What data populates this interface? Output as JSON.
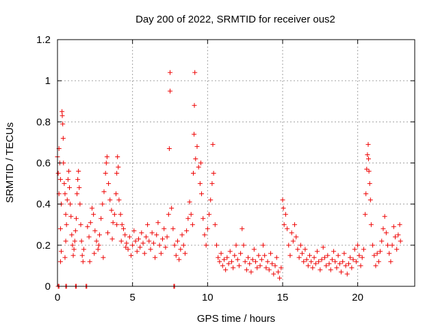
{
  "chart_data": {
    "type": "scatter",
    "title": "Day 200 of 2022, SRMTID for receiver ous2",
    "xlabel": "GPS time / hours",
    "ylabel": "SRMTID / TECUs",
    "xlim": [
      0,
      23.8
    ],
    "ylim": [
      0,
      1.2
    ],
    "x_ticks": [
      0,
      5,
      10,
      15,
      20
    ],
    "x_tick_labels": [
      "0",
      "5",
      "10",
      "15",
      "20"
    ],
    "y_ticks": [
      0,
      0.2,
      0.4,
      0.6,
      0.8,
      1.0,
      1.2
    ],
    "y_tick_labels": [
      "0",
      "0.2",
      "0.4",
      "0.6",
      "0.8",
      "1",
      "1.2"
    ],
    "grid": true,
    "marker": "+",
    "color": "#ee0000",
    "series": [
      {
        "name": "SRMTID",
        "points": [
          [
            0.0,
            0.63
          ],
          [
            0.05,
            0.55
          ],
          [
            0.1,
            0.45
          ],
          [
            0.1,
            0.67
          ],
          [
            0.15,
            0.6
          ],
          [
            0.2,
            0.52
          ],
          [
            0.2,
            0.28
          ],
          [
            0.25,
            0.4
          ],
          [
            0.3,
            0.85
          ],
          [
            0.32,
            0.83
          ],
          [
            0.35,
            0.79
          ],
          [
            0.38,
            0.72
          ],
          [
            0.4,
            0.6
          ],
          [
            0.45,
            0.5
          ],
          [
            0.5,
            0.45
          ],
          [
            0.55,
            0.35
          ],
          [
            0.6,
            0.3
          ],
          [
            0.65,
            0.42
          ],
          [
            0.7,
            0.52
          ],
          [
            0.75,
            0.56
          ],
          [
            0.8,
            0.48
          ],
          [
            0.85,
            0.4
          ],
          [
            0.9,
            0.34
          ],
          [
            0.95,
            0.25
          ],
          [
            1.0,
            0.2
          ],
          [
            1.05,
            0.15
          ],
          [
            1.1,
            0.18
          ],
          [
            1.15,
            0.22
          ],
          [
            1.2,
            0.27
          ],
          [
            1.25,
            0.33
          ],
          [
            1.3,
            0.45
          ],
          [
            1.35,
            0.52
          ],
          [
            1.4,
            0.56
          ],
          [
            1.45,
            0.48
          ],
          [
            1.5,
            0.4
          ],
          [
            1.55,
            0.3
          ],
          [
            1.6,
            0.22
          ],
          [
            1.65,
            0.15
          ],
          [
            1.7,
            0.12
          ],
          [
            1.75,
            0.18
          ],
          [
            0.2,
            0.12
          ],
          [
            0.25,
            0.17
          ],
          [
            0.5,
            0.14
          ],
          [
            0.55,
            0.22
          ],
          [
            2.0,
            0.29
          ],
          [
            2.1,
            0.24
          ],
          [
            2.2,
            0.31
          ],
          [
            2.3,
            0.38
          ],
          [
            2.4,
            0.35
          ],
          [
            2.5,
            0.27
          ],
          [
            2.6,
            0.22
          ],
          [
            2.7,
            0.18
          ],
          [
            2.8,
            0.25
          ],
          [
            2.9,
            0.33
          ],
          [
            3.0,
            0.4
          ],
          [
            3.1,
            0.46
          ],
          [
            3.2,
            0.55
          ],
          [
            3.25,
            0.6
          ],
          [
            3.3,
            0.63
          ],
          [
            3.4,
            0.5
          ],
          [
            3.5,
            0.42
          ],
          [
            3.6,
            0.37
          ],
          [
            3.7,
            0.31
          ],
          [
            3.8,
            0.35
          ],
          [
            3.9,
            0.45
          ],
          [
            3.95,
            0.55
          ],
          [
            4.0,
            0.63
          ],
          [
            4.05,
            0.58
          ],
          [
            4.1,
            0.42
          ],
          [
            4.2,
            0.35
          ],
          [
            4.3,
            0.3
          ],
          [
            4.4,
            0.28
          ],
          [
            4.5,
            0.25
          ],
          [
            2.15,
            0.12
          ],
          [
            2.45,
            0.16
          ],
          [
            2.75,
            0.2
          ],
          [
            3.05,
            0.14
          ],
          [
            3.35,
            0.26
          ],
          [
            3.65,
            0.23
          ],
          [
            3.95,
            0.3
          ],
          [
            4.25,
            0.22
          ],
          [
            4.55,
            0.19
          ],
          [
            4.6,
            0.21
          ],
          [
            4.7,
            0.18
          ],
          [
            4.8,
            0.24
          ],
          [
            4.9,
            0.15
          ],
          [
            5.0,
            0.2
          ],
          [
            5.1,
            0.27
          ],
          [
            5.2,
            0.22
          ],
          [
            5.3,
            0.17
          ],
          [
            5.4,
            0.23
          ],
          [
            5.5,
            0.19
          ],
          [
            5.6,
            0.26
          ],
          [
            5.7,
            0.21
          ],
          [
            5.8,
            0.16
          ],
          [
            5.9,
            0.24
          ],
          [
            6.0,
            0.3
          ],
          [
            6.1,
            0.22
          ],
          [
            6.2,
            0.18
          ],
          [
            6.3,
            0.26
          ],
          [
            6.4,
            0.21
          ],
          [
            6.5,
            0.14
          ],
          [
            6.6,
            0.25
          ],
          [
            6.7,
            0.31
          ],
          [
            6.8,
            0.2
          ],
          [
            6.9,
            0.16
          ],
          [
            7.0,
            0.23
          ],
          [
            7.1,
            0.28
          ],
          [
            7.2,
            0.19
          ],
          [
            7.3,
            0.24
          ],
          [
            7.4,
            0.35
          ],
          [
            7.45,
            0.67
          ],
          [
            7.5,
            0.95
          ],
          [
            7.5,
            1.04
          ],
          [
            7.6,
            0.38
          ],
          [
            7.7,
            0.28
          ],
          [
            7.8,
            0.2
          ],
          [
            7.9,
            0.15
          ],
          [
            8.0,
            0.22
          ],
          [
            8.1,
            0.13
          ],
          [
            8.2,
            0.18
          ],
          [
            8.3,
            0.25
          ],
          [
            8.4,
            0.2
          ],
          [
            8.5,
            0.16
          ],
          [
            8.6,
            0.27
          ],
          [
            8.7,
            0.33
          ],
          [
            8.8,
            0.41
          ],
          [
            8.9,
            0.35
          ],
          [
            9.0,
            0.3
          ],
          [
            9.05,
            0.55
          ],
          [
            9.1,
            0.74
          ],
          [
            9.12,
            0.88
          ],
          [
            9.15,
            1.04
          ],
          [
            9.2,
            0.62
          ],
          [
            9.3,
            0.68
          ],
          [
            9.4,
            0.58
          ],
          [
            9.5,
            0.5
          ],
          [
            9.55,
            0.6
          ],
          [
            9.6,
            0.45
          ],
          [
            9.7,
            0.33
          ],
          [
            9.8,
            0.25
          ],
          [
            9.9,
            0.2
          ],
          [
            10.0,
            0.28
          ],
          [
            10.1,
            0.35
          ],
          [
            10.2,
            0.42
          ],
          [
            10.3,
            0.5
          ],
          [
            10.35,
            0.69
          ],
          [
            10.4,
            0.55
          ],
          [
            10.5,
            0.3
          ],
          [
            10.6,
            0.2
          ],
          [
            10.7,
            0.14
          ],
          [
            10.8,
            0.12
          ],
          [
            10.9,
            0.16
          ],
          [
            11.0,
            0.1
          ],
          [
            11.1,
            0.13
          ],
          [
            11.2,
            0.08
          ],
          [
            11.3,
            0.14
          ],
          [
            11.4,
            0.11
          ],
          [
            11.5,
            0.17
          ],
          [
            11.6,
            0.12
          ],
          [
            11.7,
            0.09
          ],
          [
            11.8,
            0.15
          ],
          [
            11.9,
            0.2
          ],
          [
            12.0,
            0.13
          ],
          [
            12.1,
            0.1
          ],
          [
            12.2,
            0.16
          ],
          [
            12.3,
            0.28
          ],
          [
            12.4,
            0.2
          ],
          [
            12.5,
            0.12
          ],
          [
            12.6,
            0.08
          ],
          [
            12.7,
            0.14
          ],
          [
            12.8,
            0.11
          ],
          [
            12.9,
            0.07
          ],
          [
            13.0,
            0.13
          ],
          [
            13.1,
            0.18
          ],
          [
            13.2,
            0.12
          ],
          [
            13.3,
            0.09
          ],
          [
            13.4,
            0.15
          ],
          [
            13.5,
            0.1
          ],
          [
            13.6,
            0.13
          ],
          [
            13.7,
            0.2
          ],
          [
            13.8,
            0.15
          ],
          [
            13.9,
            0.09
          ],
          [
            14.0,
            0.12
          ],
          [
            14.1,
            0.08
          ],
          [
            14.2,
            0.16
          ],
          [
            14.3,
            0.11
          ],
          [
            14.4,
            0.06
          ],
          [
            14.5,
            0.1
          ],
          [
            14.6,
            0.14
          ],
          [
            14.7,
            0.07
          ],
          [
            14.8,
            0.04
          ],
          [
            14.9,
            0.09
          ],
          [
            15.0,
            0.42
          ],
          [
            15.05,
            0.38
          ],
          [
            15.1,
            0.3
          ],
          [
            15.2,
            0.35
          ],
          [
            15.3,
            0.28
          ],
          [
            15.4,
            0.2
          ],
          [
            15.5,
            0.15
          ],
          [
            15.6,
            0.26
          ],
          [
            15.7,
            0.22
          ],
          [
            15.8,
            0.3
          ],
          [
            15.9,
            0.24
          ],
          [
            16.0,
            0.18
          ],
          [
            16.1,
            0.14
          ],
          [
            16.2,
            0.2
          ],
          [
            16.3,
            0.16
          ],
          [
            16.4,
            0.12
          ],
          [
            16.5,
            0.18
          ],
          [
            16.6,
            0.13
          ],
          [
            16.7,
            0.1
          ],
          [
            16.8,
            0.15
          ],
          [
            16.9,
            0.12
          ],
          [
            17.0,
            0.09
          ],
          [
            17.1,
            0.14
          ],
          [
            17.2,
            0.11
          ],
          [
            17.3,
            0.17
          ],
          [
            17.4,
            0.12
          ],
          [
            17.5,
            0.08
          ],
          [
            17.6,
            0.13
          ],
          [
            17.7,
            0.19
          ],
          [
            17.8,
            0.14
          ],
          [
            17.9,
            0.1
          ],
          [
            18.0,
            0.15
          ],
          [
            18.1,
            0.11
          ],
          [
            18.2,
            0.08
          ],
          [
            18.3,
            0.13
          ],
          [
            18.4,
            0.17
          ],
          [
            18.5,
            0.12
          ],
          [
            18.6,
            0.09
          ],
          [
            18.7,
            0.15
          ],
          [
            18.8,
            0.11
          ],
          [
            18.9,
            0.07
          ],
          [
            19.0,
            0.12
          ],
          [
            19.1,
            0.16
          ],
          [
            19.2,
            0.1
          ],
          [
            19.3,
            0.06
          ],
          [
            19.4,
            0.11
          ],
          [
            19.5,
            0.14
          ],
          [
            19.6,
            0.09
          ],
          [
            19.7,
            0.13
          ],
          [
            19.8,
            0.18
          ],
          [
            19.9,
            0.12
          ],
          [
            20.0,
            0.2
          ],
          [
            20.1,
            0.15
          ],
          [
            20.2,
            0.1
          ],
          [
            20.3,
            0.14
          ],
          [
            20.4,
            0.18
          ],
          [
            20.5,
            0.35
          ],
          [
            20.55,
            0.45
          ],
          [
            20.6,
            0.57
          ],
          [
            20.65,
            0.64
          ],
          [
            20.7,
            0.69
          ],
          [
            20.72,
            0.62
          ],
          [
            20.75,
            0.56
          ],
          [
            20.8,
            0.5
          ],
          [
            20.85,
            0.42
          ],
          [
            20.9,
            0.3
          ],
          [
            21.0,
            0.2
          ],
          [
            21.1,
            0.15
          ],
          [
            21.2,
            0.1
          ],
          [
            21.3,
            0.16
          ],
          [
            21.4,
            0.12
          ],
          [
            21.5,
            0.17
          ],
          [
            21.6,
            0.22
          ],
          [
            21.7,
            0.28
          ],
          [
            21.8,
            0.34
          ],
          [
            21.9,
            0.26
          ],
          [
            22.0,
            0.2
          ],
          [
            22.1,
            0.16
          ],
          [
            22.2,
            0.12
          ],
          [
            22.3,
            0.2
          ],
          [
            22.4,
            0.29
          ],
          [
            22.5,
            0.24
          ],
          [
            22.6,
            0.18
          ],
          [
            22.7,
            0.25
          ],
          [
            22.8,
            0.3
          ],
          [
            22.85,
            0.22
          ],
          [
            0.05,
            0.0
          ],
          [
            0.1,
            0.0
          ],
          [
            0.55,
            0.0
          ],
          [
            0.6,
            0.0
          ],
          [
            1.2,
            0.0
          ],
          [
            1.25,
            0.0
          ],
          [
            1.9,
            0.0
          ],
          [
            1.95,
            0.0
          ],
          [
            7.75,
            0.0
          ],
          [
            7.8,
            0.0
          ]
        ]
      }
    ]
  }
}
